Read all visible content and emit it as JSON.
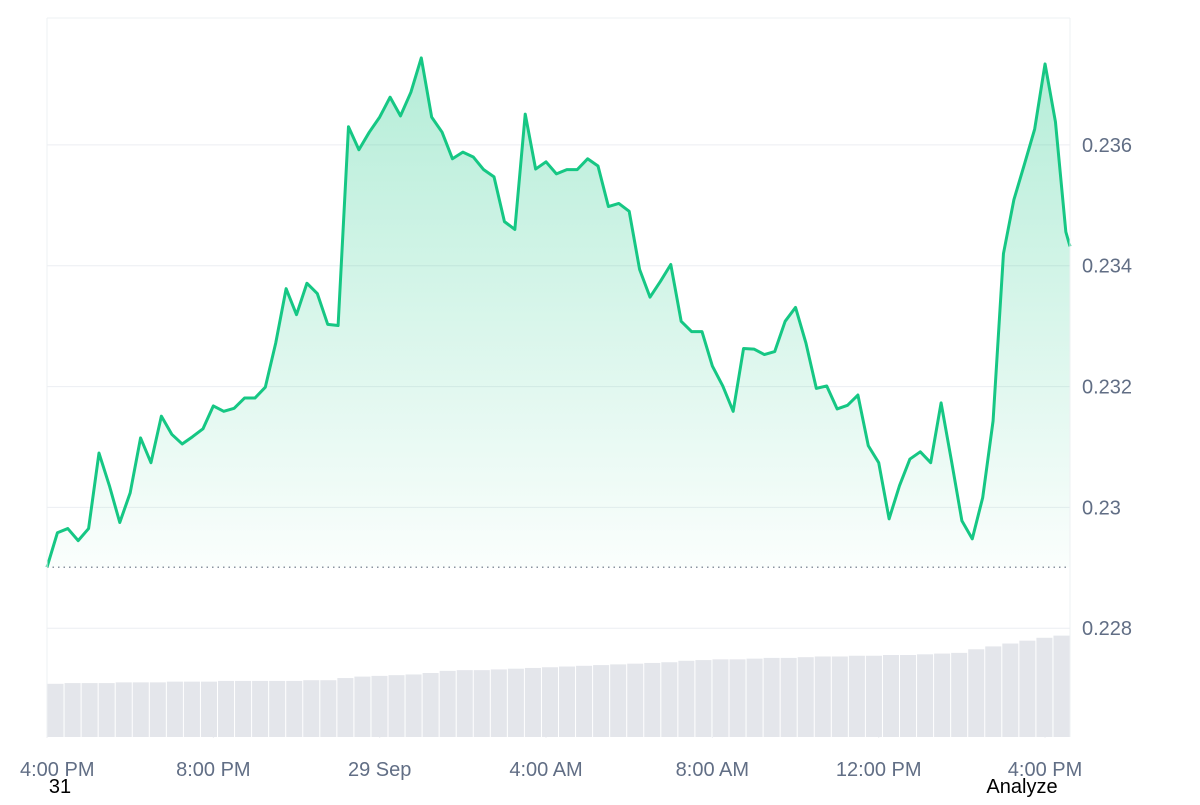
{
  "chart_data": {
    "type": "area",
    "color": "#16c784",
    "reference_line": 0.22901,
    "xlim": [
      0,
      24.6
    ],
    "xticks": [
      {
        "value": 0,
        "label": "4:00 PM"
      },
      {
        "value": 4,
        "label": "8:00 PM"
      },
      {
        "value": 8,
        "label": "29 Sep"
      },
      {
        "value": 12,
        "label": "4:00 AM"
      },
      {
        "value": 16,
        "label": "8:00 AM"
      },
      {
        "value": 20,
        "label": "12:00 PM"
      },
      {
        "value": 24,
        "label": "4:00 PM"
      }
    ],
    "ylim": [
      0.2262,
      0.2381
    ],
    "yticks": [
      0.228,
      0.23,
      0.232,
      0.234,
      0.236
    ],
    "grid": true,
    "x": [
      0,
      0.25,
      0.5,
      0.75,
      1,
      1.25,
      1.5,
      1.75,
      2,
      2.25,
      2.5,
      2.75,
      3,
      3.25,
      3.5,
      3.75,
      4,
      4.25,
      4.5,
      4.75,
      5,
      5.25,
      5.5,
      5.75,
      6,
      6.25,
      6.5,
      6.75,
      7,
      7.25,
      7.5,
      7.75,
      8,
      8.25,
      8.5,
      8.75,
      9,
      9.25,
      9.5,
      9.75,
      10,
      10.25,
      10.5,
      10.75,
      11,
      11.25,
      11.5,
      11.75,
      12,
      12.25,
      12.5,
      12.75,
      13,
      13.25,
      13.5,
      13.75,
      14,
      14.25,
      14.5,
      14.75,
      15,
      15.25,
      15.5,
      15.75,
      16,
      16.25,
      16.5,
      16.75,
      17,
      17.25,
      17.5,
      17.75,
      18,
      18.25,
      18.5,
      18.75,
      19,
      19.25,
      19.5,
      19.75,
      20,
      20.25,
      20.5,
      20.75,
      21,
      21.25,
      21.5,
      21.75,
      22,
      22.25,
      22.5,
      22.75,
      23,
      23.25,
      23.5,
      23.75,
      24,
      24.25,
      24.5,
      24.6
    ],
    "values": [
      0.22901,
      0.22958,
      0.22965,
      0.22945,
      0.22965,
      0.2309,
      0.23036,
      0.22975,
      0.23024,
      0.23115,
      0.23074,
      0.23151,
      0.23121,
      0.23105,
      0.23117,
      0.2313,
      0.23168,
      0.23159,
      0.23164,
      0.23181,
      0.23181,
      0.23199,
      0.23272,
      0.23362,
      0.23319,
      0.23371,
      0.23354,
      0.23303,
      0.23301,
      0.2363,
      0.23592,
      0.23621,
      0.23646,
      0.23679,
      0.23648,
      0.23687,
      0.23744,
      0.23646,
      0.23621,
      0.23577,
      0.23588,
      0.2358,
      0.23559,
      0.23547,
      0.23473,
      0.2346,
      0.23651,
      0.2356,
      0.23572,
      0.23552,
      0.23559,
      0.23559,
      0.23577,
      0.23565,
      0.23498,
      0.23503,
      0.2349,
      0.23394,
      0.23348,
      0.23374,
      0.23402,
      0.23308,
      0.23291,
      0.23291,
      0.23234,
      0.23201,
      0.23159,
      0.23263,
      0.23262,
      0.23253,
      0.23258,
      0.23308,
      0.23331,
      0.23272,
      0.23197,
      0.23201,
      0.23163,
      0.23169,
      0.23186,
      0.23102,
      0.23074,
      0.22981,
      0.23036,
      0.2308,
      0.23092,
      0.23074,
      0.23173,
      0.23077,
      0.22978,
      0.22948,
      0.23016,
      0.23143,
      0.2342,
      0.23509,
      0.23567,
      0.23626,
      0.23734,
      0.23638,
      0.23456,
      0.23432
    ],
    "volume": {
      "color": "#e4e6eb",
      "ylim": [
        0,
        100
      ],
      "values": [
        7.4,
        7.5,
        7.5,
        7.5,
        7.6,
        7.6,
        7.6,
        7.7,
        7.7,
        7.7,
        7.8,
        7.8,
        7.8,
        7.8,
        7.8,
        7.9,
        7.9,
        8.2,
        8.4,
        8.5,
        8.6,
        8.7,
        8.9,
        9.2,
        9.3,
        9.3,
        9.4,
        9.5,
        9.6,
        9.7,
        9.8,
        9.9,
        10.0,
        10.1,
        10.2,
        10.3,
        10.4,
        10.6,
        10.7,
        10.8,
        10.8,
        10.9,
        11.0,
        11.0,
        11.1,
        11.2,
        11.2,
        11.3,
        11.3,
        11.4,
        11.4,
        11.5,
        11.6,
        11.7,
        12.2,
        12.6,
        13.0,
        13.4,
        13.8,
        14.1
      ]
    }
  },
  "footer": {
    "left": "31",
    "right": "Analyze"
  }
}
